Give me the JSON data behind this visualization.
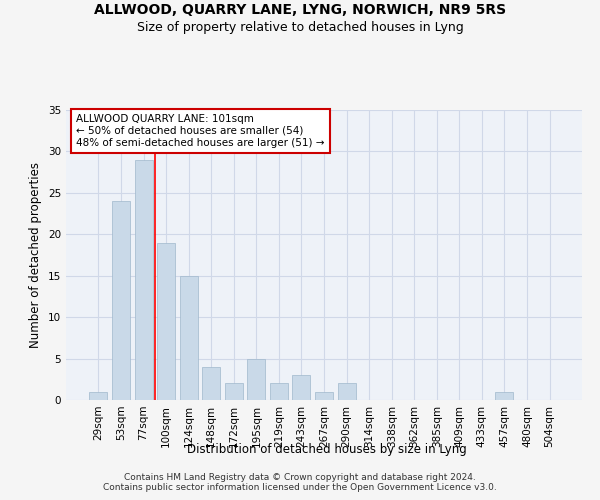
{
  "title": "ALLWOOD, QUARRY LANE, LYNG, NORWICH, NR9 5RS",
  "subtitle": "Size of property relative to detached houses in Lyng",
  "xlabel": "Distribution of detached houses by size in Lyng",
  "ylabel": "Number of detached properties",
  "bar_labels": [
    "29sqm",
    "53sqm",
    "77sqm",
    "100sqm",
    "124sqm",
    "148sqm",
    "172sqm",
    "195sqm",
    "219sqm",
    "243sqm",
    "267sqm",
    "290sqm",
    "314sqm",
    "338sqm",
    "362sqm",
    "385sqm",
    "409sqm",
    "433sqm",
    "457sqm",
    "480sqm",
    "504sqm"
  ],
  "bar_values": [
    1,
    24,
    29,
    19,
    15,
    4,
    2,
    5,
    2,
    3,
    1,
    2,
    0,
    0,
    0,
    0,
    0,
    0,
    1,
    0,
    0
  ],
  "bar_color": "#c9d9e8",
  "bar_edgecolor": "#a0b8cc",
  "grid_color": "#d0d8e8",
  "bg_color": "#eef2f8",
  "fig_bg_color": "#f5f5f5",
  "red_line_x": 2.5,
  "annotation_text": "ALLWOOD QUARRY LANE: 101sqm\n← 50% of detached houses are smaller (54)\n48% of semi-detached houses are larger (51) →",
  "annotation_box_color": "#ffffff",
  "annotation_box_edgecolor": "#cc0000",
  "ylim": [
    0,
    35
  ],
  "yticks": [
    0,
    5,
    10,
    15,
    20,
    25,
    30,
    35
  ],
  "footer": "Contains HM Land Registry data © Crown copyright and database right 2024.\nContains public sector information licensed under the Open Government Licence v3.0.",
  "title_fontsize": 10,
  "subtitle_fontsize": 9,
  "xlabel_fontsize": 8.5,
  "ylabel_fontsize": 8.5,
  "tick_fontsize": 7.5,
  "annotation_fontsize": 7.5,
  "footer_fontsize": 6.5
}
